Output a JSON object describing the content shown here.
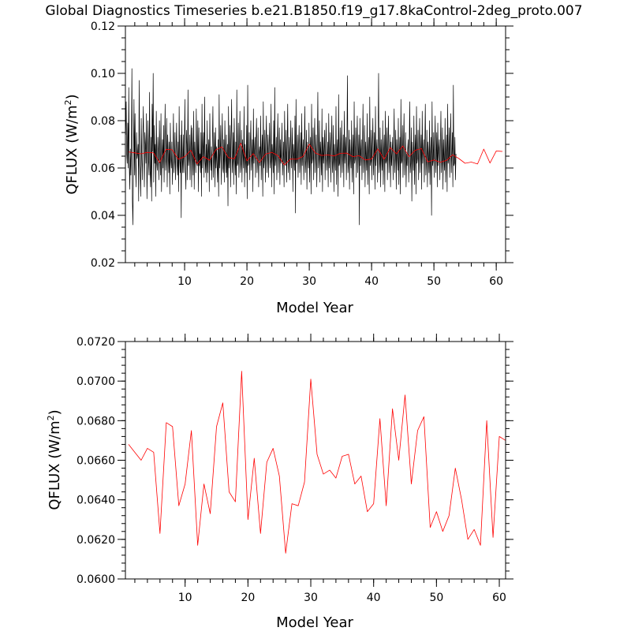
{
  "title": "Global Diagnostics Timeseries b.e21.B1850.f19_g17.8kaControl-2deg_proto.007",
  "colors": {
    "monthly": "#000000",
    "annual": "#ff0000"
  },
  "chart_data": [
    {
      "type": "line",
      "xlabel": "Model Year",
      "ylabel_main": "QFLUX (W/m",
      "ylabel_sup": "2",
      "ylabel_close": ")",
      "xlim": [
        0.5,
        61.5
      ],
      "ylim": [
        0.02,
        0.12
      ],
      "xticks": [
        10,
        20,
        30,
        40,
        50,
        60
      ],
      "xtick_labels": [
        "10",
        "20",
        "30",
        "40",
        "50",
        "60"
      ],
      "yticks": [
        0.02,
        0.04,
        0.06,
        0.08,
        0.1,
        0.12
      ],
      "ytick_labels": [
        "0.02",
        "0.04",
        "0.06",
        "0.08",
        "0.10",
        "0.12"
      ],
      "series": [
        {
          "color": "#000000",
          "x_start": 0.54,
          "x_step": 0.08333,
          "values": [
            0.074,
            0.088,
            0.066,
            0.062,
            0.079,
            0.06,
            0.094,
            0.061,
            0.051,
            0.068,
            0.057,
            0.07,
            0.102,
            0.046,
            0.036,
            0.063,
            0.089,
            0.057,
            0.083,
            0.062,
            0.052,
            0.075,
            0.064,
            0.066,
            0.07,
            0.046,
            0.097,
            0.061,
            0.057,
            0.048,
            0.081,
            0.064,
            0.055,
            0.072,
            0.086,
            0.067,
            0.052,
            0.075,
            0.07,
            0.062,
            0.083,
            0.047,
            0.061,
            0.08,
            0.063,
            0.057,
            0.092,
            0.059,
            0.052,
            0.073,
            0.046,
            0.087,
            0.067,
            0.1,
            0.054,
            0.078,
            0.062,
            0.07,
            0.048,
            0.084,
            0.062,
            0.059,
            0.073,
            0.066,
            0.055,
            0.08,
            0.065,
            0.057,
            0.083,
            0.05,
            0.064,
            0.072,
            0.06,
            0.078,
            0.054,
            0.069,
            0.087,
            0.059,
            0.063,
            0.081,
            0.052,
            0.074,
            0.066,
            0.058,
            0.071,
            0.049,
            0.079,
            0.064,
            0.06,
            0.071,
            0.053,
            0.067,
            0.083,
            0.058,
            0.063,
            0.075,
            0.055,
            0.066,
            0.079,
            0.062,
            0.057,
            0.071,
            0.05,
            0.086,
            0.063,
            0.058,
            0.074,
            0.039,
            0.08,
            0.064,
            0.058,
            0.074,
            0.058,
            0.068,
            0.089,
            0.059,
            0.051,
            0.076,
            0.07,
            0.055,
            0.093,
            0.061,
            0.064,
            0.074,
            0.055,
            0.068,
            0.078,
            0.052,
            0.077,
            0.064,
            0.057,
            0.084,
            0.051,
            0.071,
            0.065,
            0.058,
            0.085,
            0.062,
            0.061,
            0.08,
            0.05,
            0.077,
            0.061,
            0.066,
            0.058,
            0.075,
            0.048,
            0.087,
            0.06,
            0.067,
            0.075,
            0.056,
            0.09,
            0.063,
            0.058,
            0.07,
            0.054,
            0.08,
            0.058,
            0.066,
            0.072,
            0.05,
            0.083,
            0.064,
            0.059,
            0.069,
            0.055,
            0.072,
            0.086,
            0.056,
            0.064,
            0.075,
            0.052,
            0.077,
            0.06,
            0.069,
            0.061,
            0.054,
            0.072,
            0.048,
            0.091,
            0.06,
            0.066,
            0.078,
            0.053,
            0.068,
            0.083,
            0.06,
            0.058,
            0.072,
            0.054,
            0.08,
            0.065,
            0.058,
            0.074,
            0.056,
            0.07,
            0.044,
            0.086,
            0.06,
            0.064,
            0.078,
            0.052,
            0.072,
            0.089,
            0.058,
            0.063,
            0.075,
            0.053,
            0.081,
            0.065,
            0.057,
            0.071,
            0.049,
            0.093,
            0.061,
            0.062,
            0.079,
            0.056,
            0.068,
            0.084,
            0.058,
            0.062,
            0.076,
            0.054,
            0.072,
            0.066,
            0.06,
            0.086,
            0.052,
            0.07,
            0.063,
            0.058,
            0.078,
            0.047,
            0.095,
            0.061,
            0.062,
            0.075,
            0.055,
            0.069,
            0.08,
            0.059,
            0.064,
            0.072,
            0.05,
            0.085,
            0.062,
            0.067,
            0.073,
            0.056,
            0.071,
            0.081,
            0.058,
            0.063,
            0.077,
            0.052,
            0.066,
            0.069,
            0.061,
            0.082,
            0.055,
            0.067,
            0.074,
            0.048,
            0.088,
            0.06,
            0.063,
            0.076,
            0.054,
            0.071,
            0.082,
            0.058,
            0.066,
            0.074,
            0.056,
            0.068,
            0.079,
            0.06,
            0.063,
            0.087,
            0.052,
            0.07,
            0.066,
            0.058,
            0.08,
            0.049,
            0.094,
            0.061,
            0.064,
            0.073,
            0.055,
            0.07,
            0.083,
            0.058,
            0.066,
            0.077,
            0.053,
            0.072,
            0.062,
            0.066,
            0.079,
            0.057,
            0.064,
            0.071,
            0.052,
            0.084,
            0.063,
            0.061,
            0.076,
            0.054,
            0.069,
            0.087,
            0.058,
            0.064,
            0.073,
            0.055,
            0.067,
            0.08,
            0.06,
            0.066,
            0.077,
            0.05,
            0.07,
            0.065,
            0.059,
            0.082,
            0.041,
            0.089,
            0.062,
            0.063,
            0.074,
            0.056,
            0.069,
            0.078,
            0.058,
            0.065,
            0.075,
            0.053,
            0.083,
            0.061,
            0.067,
            0.072,
            0.055,
            0.068,
            0.086,
            0.058,
            0.063,
            0.076,
            0.051,
            0.071,
            0.065,
            0.06,
            0.079,
            0.054,
            0.066,
            0.073,
            0.049,
            0.087,
            0.062,
            0.064,
            0.077,
            0.055,
            0.07,
            0.081,
            0.058,
            0.066,
            0.074,
            0.052,
            0.068,
            0.092,
            0.06,
            0.064,
            0.08,
            0.054,
            0.071,
            0.066,
            0.057,
            0.085,
            0.05,
            0.073,
            0.062,
            0.067,
            0.076,
            0.055,
            0.069,
            0.079,
            0.059,
            0.064,
            0.071,
            0.052,
            0.083,
            0.06,
            0.066,
            0.075,
            0.054,
            0.068,
            0.082,
            0.058,
            0.063,
            0.078,
            0.05,
            0.07,
            0.064,
            0.059,
            0.086,
            0.053,
            0.067,
            0.072,
            0.048,
            0.091,
            0.061,
            0.062,
            0.077,
            0.056,
            0.069,
            0.08,
            0.058,
            0.065,
            0.074,
            0.052,
            0.084,
            0.062,
            0.067,
            0.073,
            0.055,
            0.07,
            0.099,
            0.058,
            0.062,
            0.076,
            0.051,
            0.072,
            0.065,
            0.06,
            0.08,
            0.054,
            0.066,
            0.074,
            0.049,
            0.088,
            0.062,
            0.064,
            0.077,
            0.056,
            0.069,
            0.082,
            0.058,
            0.066,
            0.074,
            0.036,
            0.081,
            0.061,
            0.067,
            0.072,
            0.055,
            0.069,
            0.087,
            0.058,
            0.064,
            0.078,
            0.052,
            0.071,
            0.065,
            0.059,
            0.083,
            0.053,
            0.066,
            0.073,
            0.049,
            0.09,
            0.061,
            0.063,
            0.076,
            0.055,
            0.07,
            0.081,
            0.057,
            0.065,
            0.075,
            0.051,
            0.086,
            0.061,
            0.068,
            0.072,
            0.054,
            0.07,
            0.1,
            0.058,
            0.062,
            0.077,
            0.052,
            0.072,
            0.064,
            0.059,
            0.08,
            0.053,
            0.067,
            0.074,
            0.05,
            0.084,
            0.062,
            0.063,
            0.077,
            0.055,
            0.069,
            0.082,
            0.058,
            0.065,
            0.074,
            0.052,
            0.071,
            0.061,
            0.067,
            0.073,
            0.055,
            0.069,
            0.085,
            0.058,
            0.064,
            0.076,
            0.051,
            0.072,
            0.065,
            0.059,
            0.081,
            0.053,
            0.066,
            0.073,
            0.049,
            0.089,
            0.062,
            0.063,
            0.078,
            0.056,
            0.07,
            0.083,
            0.057,
            0.065,
            0.075,
            0.052,
            0.066,
            0.061,
            0.068,
            0.072,
            0.054,
            0.069,
            0.088,
            0.058,
            0.062,
            0.077,
            0.046,
            0.071,
            0.064,
            0.059,
            0.082,
            0.053,
            0.067,
            0.074,
            0.049,
            0.086,
            0.062,
            0.064,
            0.076,
            0.055,
            0.069,
            0.081,
            0.058,
            0.066,
            0.074,
            0.051,
            0.084,
            0.062,
            0.067,
            0.072,
            0.054,
            0.07,
            0.087,
            0.057,
            0.063,
            0.076,
            0.052,
            0.071,
            0.065,
            0.058,
            0.08,
            0.053,
            0.066,
            0.073,
            0.04,
            0.088,
            0.061,
            0.063,
            0.075,
            0.056,
            0.069,
            0.082,
            0.058,
            0.065,
            0.075,
            0.052,
            0.079,
            0.061,
            0.068,
            0.072,
            0.055,
            0.069,
            0.084,
            0.058,
            0.063,
            0.077,
            0.051,
            0.072,
            0.064,
            0.059,
            0.081,
            0.054,
            0.066,
            0.074,
            0.05,
            0.087,
            0.062,
            0.064,
            0.077,
            0.056,
            0.07,
            0.083,
            0.058,
            0.066,
            0.075,
            0.052,
            0.095,
            0.061,
            0.062,
            0.073,
            0.055,
            0.066
          ]
        },
        {
          "color": "#ff0000",
          "x": [
            1,
            2,
            3,
            4,
            5,
            6,
            7,
            8,
            9,
            10,
            11,
            12,
            13,
            14,
            15,
            16,
            17,
            18,
            19,
            20,
            21,
            22,
            23,
            24,
            25,
            26,
            27,
            28,
            29,
            30,
            31,
            32,
            33,
            34,
            35,
            36,
            37,
            38,
            39,
            40,
            41,
            42,
            43,
            44,
            45,
            46,
            47,
            48,
            49,
            50,
            51,
            52,
            53,
            54,
            55,
            56,
            57,
            58,
            59,
            60,
            61
          ],
          "values": [
            0.0668,
            0.0664,
            0.066,
            0.0666,
            0.0664,
            0.0623,
            0.0679,
            0.0677,
            0.0637,
            0.0648,
            0.0675,
            0.0617,
            0.0648,
            0.0633,
            0.0677,
            0.0689,
            0.0644,
            0.0639,
            0.0705,
            0.063,
            0.0661,
            0.0623,
            0.0659,
            0.0666,
            0.0652,
            0.0613,
            0.0638,
            0.0637,
            0.0649,
            0.0701,
            0.0663,
            0.0653,
            0.0655,
            0.0651,
            0.0662,
            0.0663,
            0.0648,
            0.0652,
            0.0634,
            0.0638,
            0.0681,
            0.0637,
            0.0686,
            0.066,
            0.0693,
            0.0648,
            0.0675,
            0.0682,
            0.0626,
            0.0634,
            0.0624,
            0.0632,
            0.0656,
            0.064,
            0.062,
            0.0625,
            0.0617,
            0.068,
            0.0621,
            0.0672,
            0.067
          ]
        }
      ]
    },
    {
      "type": "line",
      "xlabel": "Model Year",
      "ylabel_main": "QFLUX (W/m",
      "ylabel_sup": "2",
      "ylabel_close": ")",
      "xlim": [
        0.5,
        61.0
      ],
      "ylim": [
        0.06,
        0.072
      ],
      "xticks": [
        10,
        20,
        30,
        40,
        50,
        60
      ],
      "xtick_labels": [
        "10",
        "20",
        "30",
        "40",
        "50",
        "60"
      ],
      "yticks": [
        0.06,
        0.062,
        0.064,
        0.066,
        0.068,
        0.07,
        0.072
      ],
      "ytick_labels": [
        "0.0600",
        "0.0620",
        "0.0640",
        "0.0660",
        "0.0680",
        "0.0700",
        "0.0720"
      ],
      "series": [
        {
          "color": "#ff0000",
          "x": [
            1,
            2,
            3,
            4,
            5,
            6,
            7,
            8,
            9,
            10,
            11,
            12,
            13,
            14,
            15,
            16,
            17,
            18,
            19,
            20,
            21,
            22,
            23,
            24,
            25,
            26,
            27,
            28,
            29,
            30,
            31,
            32,
            33,
            34,
            35,
            36,
            37,
            38,
            39,
            40,
            41,
            42,
            43,
            44,
            45,
            46,
            47,
            48,
            49,
            50,
            51,
            52,
            53,
            54,
            55,
            56,
            57,
            58,
            59,
            60,
            61
          ],
          "values": [
            0.0668,
            0.0664,
            0.066,
            0.0666,
            0.0664,
            0.0623,
            0.0679,
            0.0677,
            0.0637,
            0.0648,
            0.0675,
            0.0617,
            0.0648,
            0.0633,
            0.0677,
            0.0689,
            0.0644,
            0.0639,
            0.0705,
            0.063,
            0.0661,
            0.0623,
            0.0659,
            0.0666,
            0.0652,
            0.0613,
            0.0638,
            0.0637,
            0.0649,
            0.0701,
            0.0663,
            0.0653,
            0.0655,
            0.0651,
            0.0662,
            0.0663,
            0.0648,
            0.0652,
            0.0634,
            0.0638,
            0.0681,
            0.0637,
            0.0686,
            0.066,
            0.0693,
            0.0648,
            0.0675,
            0.0682,
            0.0626,
            0.0634,
            0.0624,
            0.0632,
            0.0656,
            0.064,
            0.062,
            0.0625,
            0.0617,
            0.068,
            0.0621,
            0.0672,
            0.067
          ]
        }
      ]
    }
  ]
}
